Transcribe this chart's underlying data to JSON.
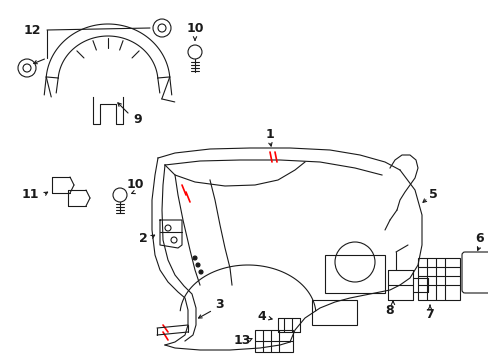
{
  "bg_color": "#ffffff",
  "line_color": "#1a1a1a",
  "red_color": "#ff0000",
  "lw": 0.8,
  "figsize": [
    4.89,
    3.6
  ],
  "dpi": 100
}
